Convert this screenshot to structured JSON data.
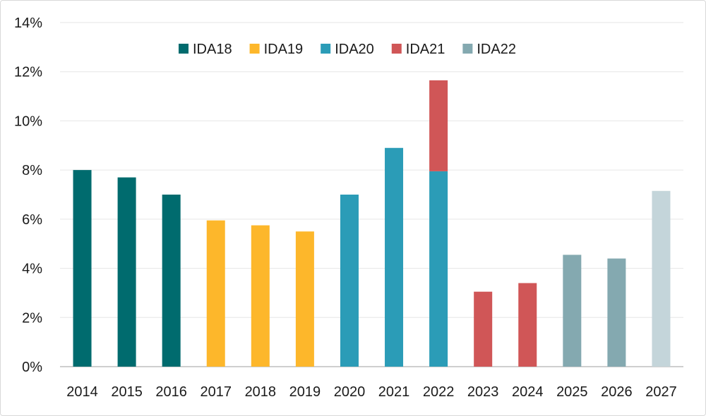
{
  "chart_data": {
    "type": "bar",
    "stacked": true,
    "title": "",
    "xlabel": "",
    "ylabel": "",
    "ylim": [
      0,
      14
    ],
    "yticks": [
      0,
      2,
      4,
      6,
      8,
      10,
      12,
      14
    ],
    "ytick_labels": [
      "0%",
      "2%",
      "4%",
      "6%",
      "8%",
      "10%",
      "12%",
      "14%"
    ],
    "grid": true,
    "legend_position": "top",
    "categories": [
      "2014",
      "2015",
      "2016",
      "2017",
      "2018",
      "2019",
      "2020",
      "2021",
      "2022",
      "2023",
      "2024",
      "2025",
      "2026",
      "2027"
    ],
    "series": [
      {
        "name": "IDA18",
        "color": "#006b6e",
        "values": [
          8.0,
          7.7,
          7.0,
          0,
          0,
          0,
          0,
          0,
          0,
          0,
          0,
          0,
          0,
          0
        ]
      },
      {
        "name": "IDA19",
        "color": "#fdb72b",
        "values": [
          0,
          0,
          0,
          5.95,
          5.75,
          5.5,
          0,
          0,
          0,
          0,
          0,
          0,
          0,
          0
        ]
      },
      {
        "name": "IDA20",
        "color": "#2b9cb7",
        "values": [
          0,
          0,
          0,
          0,
          0,
          0,
          7.0,
          8.9,
          7.95,
          0,
          0,
          0,
          0,
          0
        ]
      },
      {
        "name": "IDA21",
        "color": "#d05657",
        "values": [
          0,
          0,
          0,
          0,
          0,
          0,
          0,
          0,
          3.7,
          3.05,
          3.4,
          0,
          0,
          0
        ]
      },
      {
        "name": "IDA22",
        "color": "#84a9b0",
        "values": [
          0,
          0,
          0,
          0,
          0,
          0,
          0,
          0,
          0,
          0,
          0,
          4.55,
          4.4,
          7.15
        ]
      }
    ],
    "highlight": {
      "category": "2027",
      "color": "#c4d5da"
    }
  }
}
